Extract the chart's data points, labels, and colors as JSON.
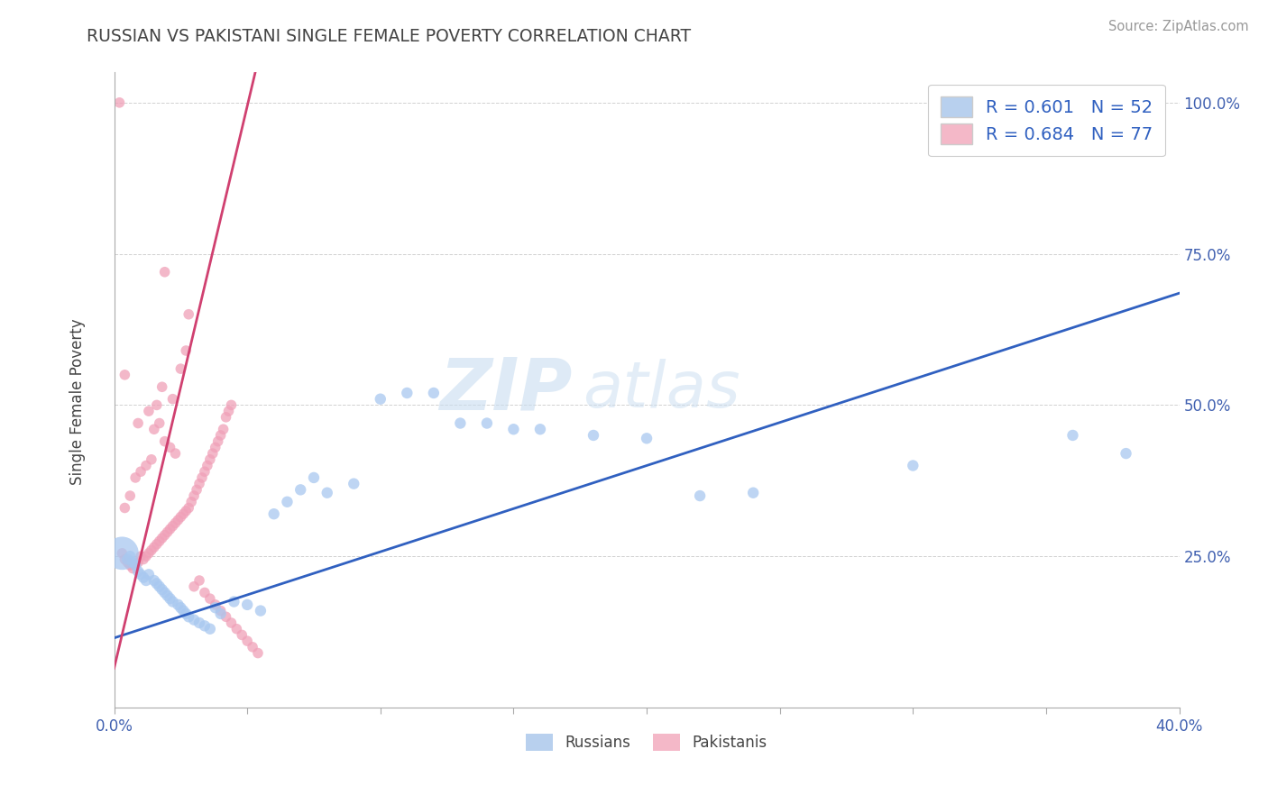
{
  "title": "RUSSIAN VS PAKISTANI SINGLE FEMALE POVERTY CORRELATION CHART",
  "source": "Source: ZipAtlas.com",
  "ylabel": "Single Female Poverty",
  "xlim": [
    0.0,
    0.4
  ],
  "ylim": [
    0.0,
    1.05
  ],
  "russian_R": 0.601,
  "russian_N": 52,
  "pakistani_R": 0.684,
  "pakistani_N": 77,
  "russian_color": "#a8c8f0",
  "pakistani_color": "#f0a0b8",
  "russian_line_color": "#3060c0",
  "pakistani_line_color": "#d04070",
  "legend_label_russian": "Russians",
  "legend_label_pakistani": "Pakistanis",
  "watermark_zip": "ZIP",
  "watermark_atlas": "atlas",
  "russian_line": [
    [
      0.0,
      0.115
    ],
    [
      0.4,
      0.685
    ]
  ],
  "pakistani_line": [
    [
      0.0,
      0.065
    ],
    [
      0.053,
      1.05
    ]
  ],
  "russian_points": [
    [
      0.003,
      0.255
    ],
    [
      0.005,
      0.245
    ],
    [
      0.006,
      0.25
    ],
    [
      0.007,
      0.24
    ],
    [
      0.008,
      0.235
    ],
    [
      0.009,
      0.225
    ],
    [
      0.01,
      0.22
    ],
    [
      0.011,
      0.215
    ],
    [
      0.012,
      0.21
    ],
    [
      0.013,
      0.22
    ],
    [
      0.015,
      0.21
    ],
    [
      0.016,
      0.205
    ],
    [
      0.017,
      0.2
    ],
    [
      0.018,
      0.195
    ],
    [
      0.019,
      0.19
    ],
    [
      0.02,
      0.185
    ],
    [
      0.021,
      0.18
    ],
    [
      0.022,
      0.175
    ],
    [
      0.024,
      0.17
    ],
    [
      0.025,
      0.165
    ],
    [
      0.026,
      0.16
    ],
    [
      0.027,
      0.155
    ],
    [
      0.028,
      0.15
    ],
    [
      0.03,
      0.145
    ],
    [
      0.032,
      0.14
    ],
    [
      0.034,
      0.135
    ],
    [
      0.036,
      0.13
    ],
    [
      0.038,
      0.165
    ],
    [
      0.04,
      0.155
    ],
    [
      0.045,
      0.175
    ],
    [
      0.05,
      0.17
    ],
    [
      0.055,
      0.16
    ],
    [
      0.06,
      0.32
    ],
    [
      0.065,
      0.34
    ],
    [
      0.07,
      0.36
    ],
    [
      0.075,
      0.38
    ],
    [
      0.08,
      0.355
    ],
    [
      0.09,
      0.37
    ],
    [
      0.1,
      0.51
    ],
    [
      0.11,
      0.52
    ],
    [
      0.12,
      0.52
    ],
    [
      0.13,
      0.47
    ],
    [
      0.14,
      0.47
    ],
    [
      0.15,
      0.46
    ],
    [
      0.16,
      0.46
    ],
    [
      0.18,
      0.45
    ],
    [
      0.2,
      0.445
    ],
    [
      0.22,
      0.35
    ],
    [
      0.24,
      0.355
    ],
    [
      0.3,
      0.4
    ],
    [
      0.36,
      0.45
    ],
    [
      0.38,
      0.42
    ]
  ],
  "russian_sizes": [
    600,
    80,
    80,
    80,
    80,
    80,
    80,
    80,
    80,
    80,
    80,
    80,
    80,
    80,
    80,
    80,
    80,
    80,
    80,
    80,
    80,
    80,
    80,
    80,
    80,
    80,
    80,
    80,
    80,
    80,
    80,
    80,
    80,
    80,
    80,
    80,
    80,
    80,
    80,
    80,
    80,
    80,
    80,
    80,
    80,
    80,
    80,
    80,
    80,
    80,
    80,
    80
  ],
  "pakistani_points": [
    [
      0.003,
      0.255
    ],
    [
      0.004,
      0.245
    ],
    [
      0.005,
      0.24
    ],
    [
      0.006,
      0.235
    ],
    [
      0.007,
      0.23
    ],
    [
      0.008,
      0.235
    ],
    [
      0.009,
      0.24
    ],
    [
      0.01,
      0.25
    ],
    [
      0.011,
      0.245
    ],
    [
      0.012,
      0.25
    ],
    [
      0.013,
      0.255
    ],
    [
      0.014,
      0.26
    ],
    [
      0.015,
      0.265
    ],
    [
      0.016,
      0.27
    ],
    [
      0.017,
      0.275
    ],
    [
      0.018,
      0.28
    ],
    [
      0.019,
      0.285
    ],
    [
      0.02,
      0.29
    ],
    [
      0.021,
      0.295
    ],
    [
      0.022,
      0.3
    ],
    [
      0.023,
      0.305
    ],
    [
      0.024,
      0.31
    ],
    [
      0.025,
      0.315
    ],
    [
      0.026,
      0.32
    ],
    [
      0.027,
      0.325
    ],
    [
      0.028,
      0.33
    ],
    [
      0.029,
      0.34
    ],
    [
      0.03,
      0.35
    ],
    [
      0.031,
      0.36
    ],
    [
      0.032,
      0.37
    ],
    [
      0.033,
      0.38
    ],
    [
      0.034,
      0.39
    ],
    [
      0.035,
      0.4
    ],
    [
      0.036,
      0.41
    ],
    [
      0.037,
      0.42
    ],
    [
      0.038,
      0.43
    ],
    [
      0.039,
      0.44
    ],
    [
      0.04,
      0.45
    ],
    [
      0.041,
      0.46
    ],
    [
      0.042,
      0.48
    ],
    [
      0.043,
      0.49
    ],
    [
      0.044,
      0.5
    ],
    [
      0.015,
      0.46
    ],
    [
      0.017,
      0.47
    ],
    [
      0.019,
      0.44
    ],
    [
      0.021,
      0.43
    ],
    [
      0.023,
      0.42
    ],
    [
      0.01,
      0.39
    ],
    [
      0.012,
      0.4
    ],
    [
      0.014,
      0.41
    ],
    [
      0.008,
      0.38
    ],
    [
      0.006,
      0.35
    ],
    [
      0.004,
      0.33
    ],
    [
      0.025,
      0.56
    ],
    [
      0.027,
      0.59
    ],
    [
      0.018,
      0.53
    ],
    [
      0.022,
      0.51
    ],
    [
      0.016,
      0.5
    ],
    [
      0.013,
      0.49
    ],
    [
      0.009,
      0.47
    ],
    [
      0.03,
      0.2
    ],
    [
      0.032,
      0.21
    ],
    [
      0.034,
      0.19
    ],
    [
      0.036,
      0.18
    ],
    [
      0.038,
      0.17
    ],
    [
      0.04,
      0.16
    ],
    [
      0.042,
      0.15
    ],
    [
      0.044,
      0.14
    ],
    [
      0.046,
      0.13
    ],
    [
      0.048,
      0.12
    ],
    [
      0.05,
      0.11
    ],
    [
      0.052,
      0.1
    ],
    [
      0.054,
      0.09
    ],
    [
      0.002,
      1.0
    ],
    [
      0.019,
      0.72
    ],
    [
      0.004,
      0.55
    ],
    [
      0.028,
      0.65
    ]
  ]
}
